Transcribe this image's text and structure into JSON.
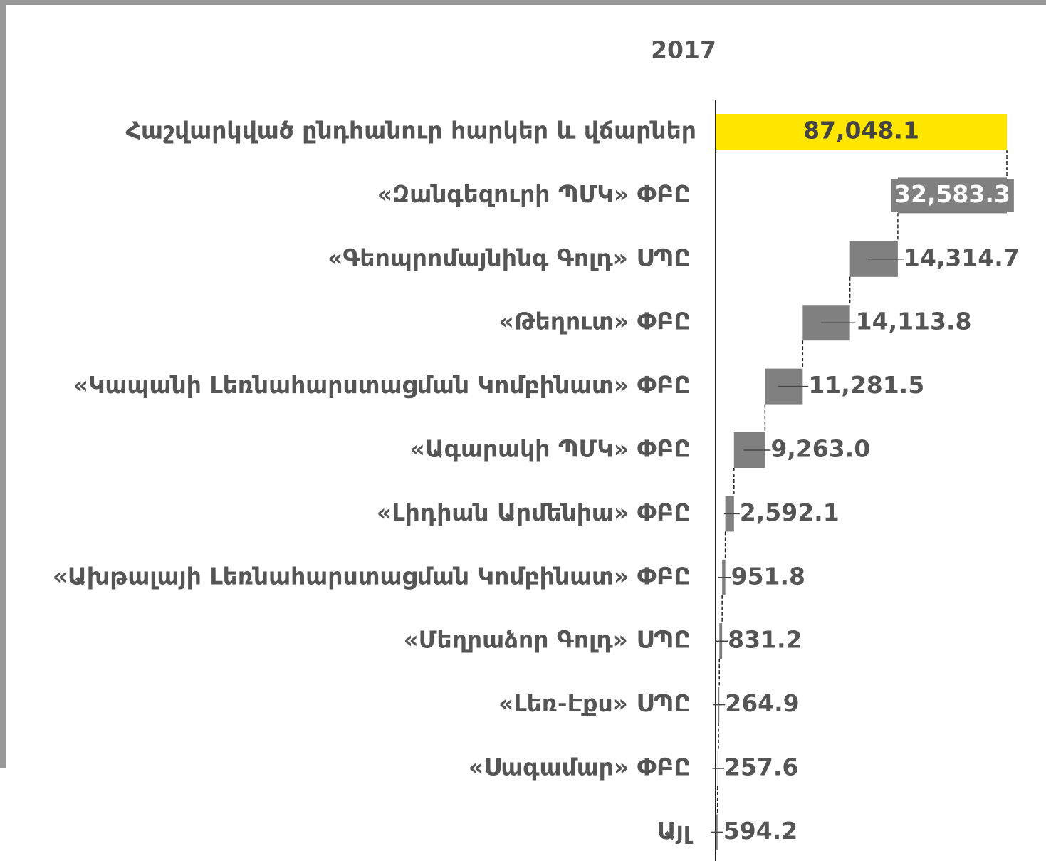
{
  "chart_data": {
    "type": "waterfall",
    "series": [
      {
        "name": "2017",
        "total_color": "#ffe600",
        "color": "#808080",
        "values": [
          87048.1,
          32583.3,
          14314.7,
          14113.8,
          11281.5,
          9263.0,
          2592.1,
          951.8,
          831.2,
          264.9,
          257.6,
          594.2
        ],
        "value_labels": [
          "87,048.1",
          "32,583.3",
          "14,314.7",
          "14,113.8",
          "11,281.5",
          "9,263.0",
          "2,592.1",
          "951.8",
          "831.2",
          "264.9",
          "257.6",
          "594.2"
        ]
      }
    ],
    "categories": [
      "Հաշվարկված ընդհանուր հարկեր և վճարներ",
      "«Զանգեզուրի ՊՄԿ» ՓԲԸ",
      "«Գեոպրոմայնինգ Գոլդ» ՍՊԸ",
      "«Թեղուտ» ՓԲԸ",
      "«Կապանի Լեռնահարստացման Կոմբինատ» ՓԲԸ",
      "«Ագարակի ՊՄԿ» ՓԲԸ",
      "«Լիդիան Արմենիա» ՓԲԸ",
      "«Ախթալայի Լեռնահարստացման Կոմբինատ» ՓԲԸ",
      "«Մեղրաձոր Գոլդ» ՍՊԸ",
      "«Լեռ-Էքս» ՍՊԸ",
      "«Սագամար» ՓԲԸ",
      "Այլ"
    ]
  }
}
